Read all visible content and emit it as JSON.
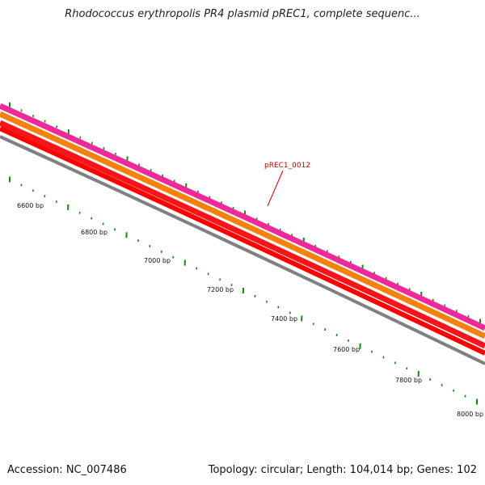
{
  "title": "Rhodococcus erythropolis PR4 plasmid pREC1, complete sequenc...",
  "footer": {
    "accession": "Accession: NC_007486",
    "summary": "Topology: circular; Length: 104,014 bp; Genes: 102"
  },
  "map": {
    "tick_labels": [
      "6600 bp",
      "6800 bp",
      "7000 bp",
      "7200 bp",
      "7400 bp",
      "7600 bp",
      "7800 bp",
      "8000 bp"
    ],
    "gene_label": "pREC1_0012",
    "track_colors": {
      "outer": "#ee2a9a",
      "second": "#f5820c",
      "third": "#f8141b",
      "fourth": "#ff0000",
      "backbone": "#808080",
      "ticks": "#0f8a0f",
      "gene_label": "#cc0000"
    }
  }
}
